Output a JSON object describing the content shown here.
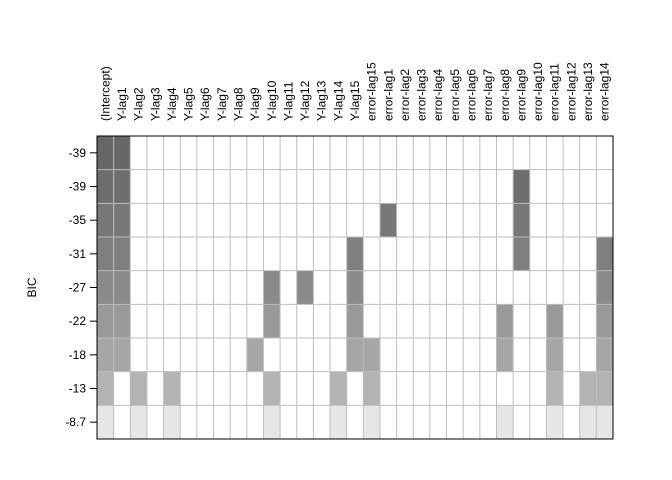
{
  "chart_data": {
    "type": "heatmap",
    "title": "",
    "xlabel": "",
    "ylabel": "BIC",
    "columns": [
      "(Intercept)",
      "Y-lag1",
      "Y-lag2",
      "Y-lag3",
      "Y-lag4",
      "Y-lag5",
      "Y-lag6",
      "Y-lag7",
      "Y-lag8",
      "Y-lag9",
      "Y-lag10",
      "Y-lag11",
      "Y-lag12",
      "Y-lag13",
      "Y-lag14",
      "Y-lag15",
      "error-lag15",
      "error-lag1",
      "error-lag2",
      "error-lag3",
      "error-lag4",
      "error-lag5",
      "error-lag6",
      "error-lag7",
      "error-lag8",
      "error-lag9",
      "error-lag10",
      "error-lag11",
      "error-lag12",
      "error-lag13",
      "error-lag14"
    ],
    "rows": [
      "-39",
      "-39",
      "-35",
      "-31",
      "-27",
      "-22",
      "-18",
      "-13",
      "-8.7"
    ],
    "row_colors": [
      "#666666",
      "#6e6e6e",
      "#777777",
      "#7f7f7f",
      "#8a8a8a",
      "#999999",
      "#a6a6a6",
      "#b3b3b3",
      "#e6e6e6"
    ],
    "empty_color": "#ffffff",
    "grid_color": "#bebebe",
    "selected": [
      [
        0,
        1
      ],
      [
        0,
        1,
        25
      ],
      [
        0,
        1,
        17,
        25
      ],
      [
        0,
        1,
        15,
        25,
        30
      ],
      [
        0,
        1,
        10,
        12,
        15,
        30
      ],
      [
        0,
        1,
        10,
        15,
        24,
        27,
        30
      ],
      [
        0,
        1,
        9,
        15,
        16,
        24,
        27,
        30
      ],
      [
        0,
        2,
        4,
        10,
        14,
        16,
        27,
        29,
        30
      ],
      [
        0,
        2,
        4,
        10,
        14,
        16,
        24,
        27,
        29,
        30
      ]
    ]
  }
}
